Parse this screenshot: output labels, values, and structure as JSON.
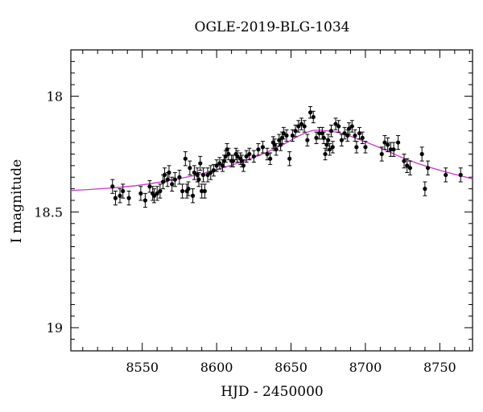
{
  "chart_data": {
    "type": "scatter",
    "title": "OGLE-2019-BLG-1034",
    "xlabel": "HJD - 2450000",
    "ylabel": "I magnitude",
    "xlim": [
      8502,
      8772
    ],
    "ylim": [
      17.8,
      19.1
    ],
    "y_inverted": true,
    "grid": false,
    "x_ticks": [
      "8550",
      "8600",
      "8650",
      "8700",
      "8750"
    ],
    "y_ticks": [
      "18",
      "18.5",
      "19"
    ],
    "model_color": "#cc33cc",
    "point_color": "#000000",
    "model": {
      "x": [
        8502,
        8530,
        8550,
        8570,
        8590,
        8610,
        8630,
        8645,
        8655,
        8665,
        8675,
        8685,
        8695,
        8705,
        8715,
        8725,
        8735,
        8750,
        8772
      ],
      "y": [
        18.408,
        18.396,
        18.383,
        18.362,
        18.335,
        18.298,
        18.252,
        18.208,
        18.172,
        18.148,
        18.15,
        18.162,
        18.185,
        18.21,
        18.237,
        18.266,
        18.29,
        18.32,
        18.357
      ]
    },
    "points": {
      "x": [
        8530,
        8532,
        8535,
        8537,
        8541,
        8549,
        8552,
        8555,
        8557,
        8558,
        8560,
        8562,
        8564,
        8565,
        8567,
        8568,
        8570,
        8572,
        8575,
        8577,
        8579,
        8580,
        8581,
        8582,
        8584,
        8585,
        8587,
        8588,
        8589,
        8590,
        8591,
        8592,
        8594,
        8596,
        8598,
        8600,
        8602,
        8604,
        8605,
        8606,
        8607,
        8608,
        8610,
        8611,
        8613,
        8614,
        8616,
        8617,
        8618,
        8620,
        8622,
        8625,
        8628,
        8631,
        8634,
        8636,
        8638,
        8639,
        8640,
        8642,
        8643,
        8644,
        8645,
        8647,
        8649,
        8651,
        8653,
        8655,
        8657,
        8659,
        8661,
        8663,
        8665,
        8667,
        8669,
        8671,
        8672,
        8673,
        8674,
        8675,
        8676,
        8677,
        8678,
        8680,
        8682,
        8684,
        8686,
        8688,
        8689,
        8691,
        8693,
        8694,
        8696,
        8698,
        8700,
        8711,
        8713,
        8715,
        8717,
        8719,
        8722,
        8726,
        8728,
        8730,
        8738,
        8740,
        8742,
        8754,
        8764
      ],
      "y": [
        18.39,
        18.44,
        18.43,
        18.41,
        18.44,
        18.42,
        18.45,
        18.39,
        18.42,
        18.43,
        18.42,
        18.41,
        18.37,
        18.34,
        18.36,
        18.33,
        18.38,
        18.36,
        18.35,
        18.41,
        18.27,
        18.41,
        18.4,
        18.31,
        18.43,
        18.33,
        18.34,
        18.36,
        18.29,
        18.41,
        18.34,
        18.41,
        18.34,
        18.33,
        18.32,
        18.3,
        18.29,
        18.3,
        18.28,
        18.26,
        18.23,
        18.25,
        18.28,
        18.28,
        18.25,
        18.26,
        18.27,
        18.28,
        18.3,
        18.26,
        18.25,
        18.26,
        18.23,
        18.22,
        18.25,
        18.27,
        18.2,
        18.21,
        18.23,
        18.19,
        18.21,
        18.18,
        18.16,
        18.17,
        18.27,
        18.17,
        18.15,
        18.13,
        18.12,
        18.13,
        18.19,
        18.07,
        18.09,
        18.18,
        18.16,
        18.16,
        18.18,
        18.25,
        18.21,
        18.19,
        18.23,
        18.15,
        18.22,
        18.12,
        18.13,
        18.19,
        18.16,
        18.17,
        18.14,
        18.13,
        18.17,
        18.22,
        18.16,
        18.18,
        18.22,
        18.25,
        18.2,
        18.21,
        18.23,
        18.23,
        18.2,
        18.28,
        18.3,
        18.31,
        18.25,
        18.4,
        18.31,
        18.34,
        18.34
      ],
      "err": [
        0.03,
        0.03,
        0.03,
        0.03,
        0.03,
        0.03,
        0.03,
        0.025,
        0.03,
        0.03,
        0.03,
        0.03,
        0.03,
        0.03,
        0.03,
        0.03,
        0.03,
        0.03,
        0.03,
        0.03,
        0.03,
        0.03,
        0.03,
        0.03,
        0.03,
        0.03,
        0.03,
        0.03,
        0.03,
        0.03,
        0.03,
        0.03,
        0.03,
        0.03,
        0.025,
        0.025,
        0.025,
        0.025,
        0.025,
        0.025,
        0.025,
        0.025,
        0.025,
        0.025,
        0.025,
        0.025,
        0.025,
        0.025,
        0.025,
        0.025,
        0.025,
        0.025,
        0.025,
        0.025,
        0.025,
        0.025,
        0.025,
        0.025,
        0.025,
        0.025,
        0.025,
        0.025,
        0.025,
        0.025,
        0.03,
        0.025,
        0.025,
        0.025,
        0.025,
        0.025,
        0.025,
        0.025,
        0.025,
        0.025,
        0.025,
        0.025,
        0.025,
        0.025,
        0.025,
        0.025,
        0.025,
        0.025,
        0.025,
        0.025,
        0.025,
        0.025,
        0.025,
        0.025,
        0.025,
        0.025,
        0.025,
        0.025,
        0.025,
        0.025,
        0.025,
        0.03,
        0.03,
        0.03,
        0.03,
        0.03,
        0.03,
        0.03,
        0.03,
        0.03,
        0.03,
        0.03,
        0.03,
        0.03,
        0.03
      ]
    }
  }
}
